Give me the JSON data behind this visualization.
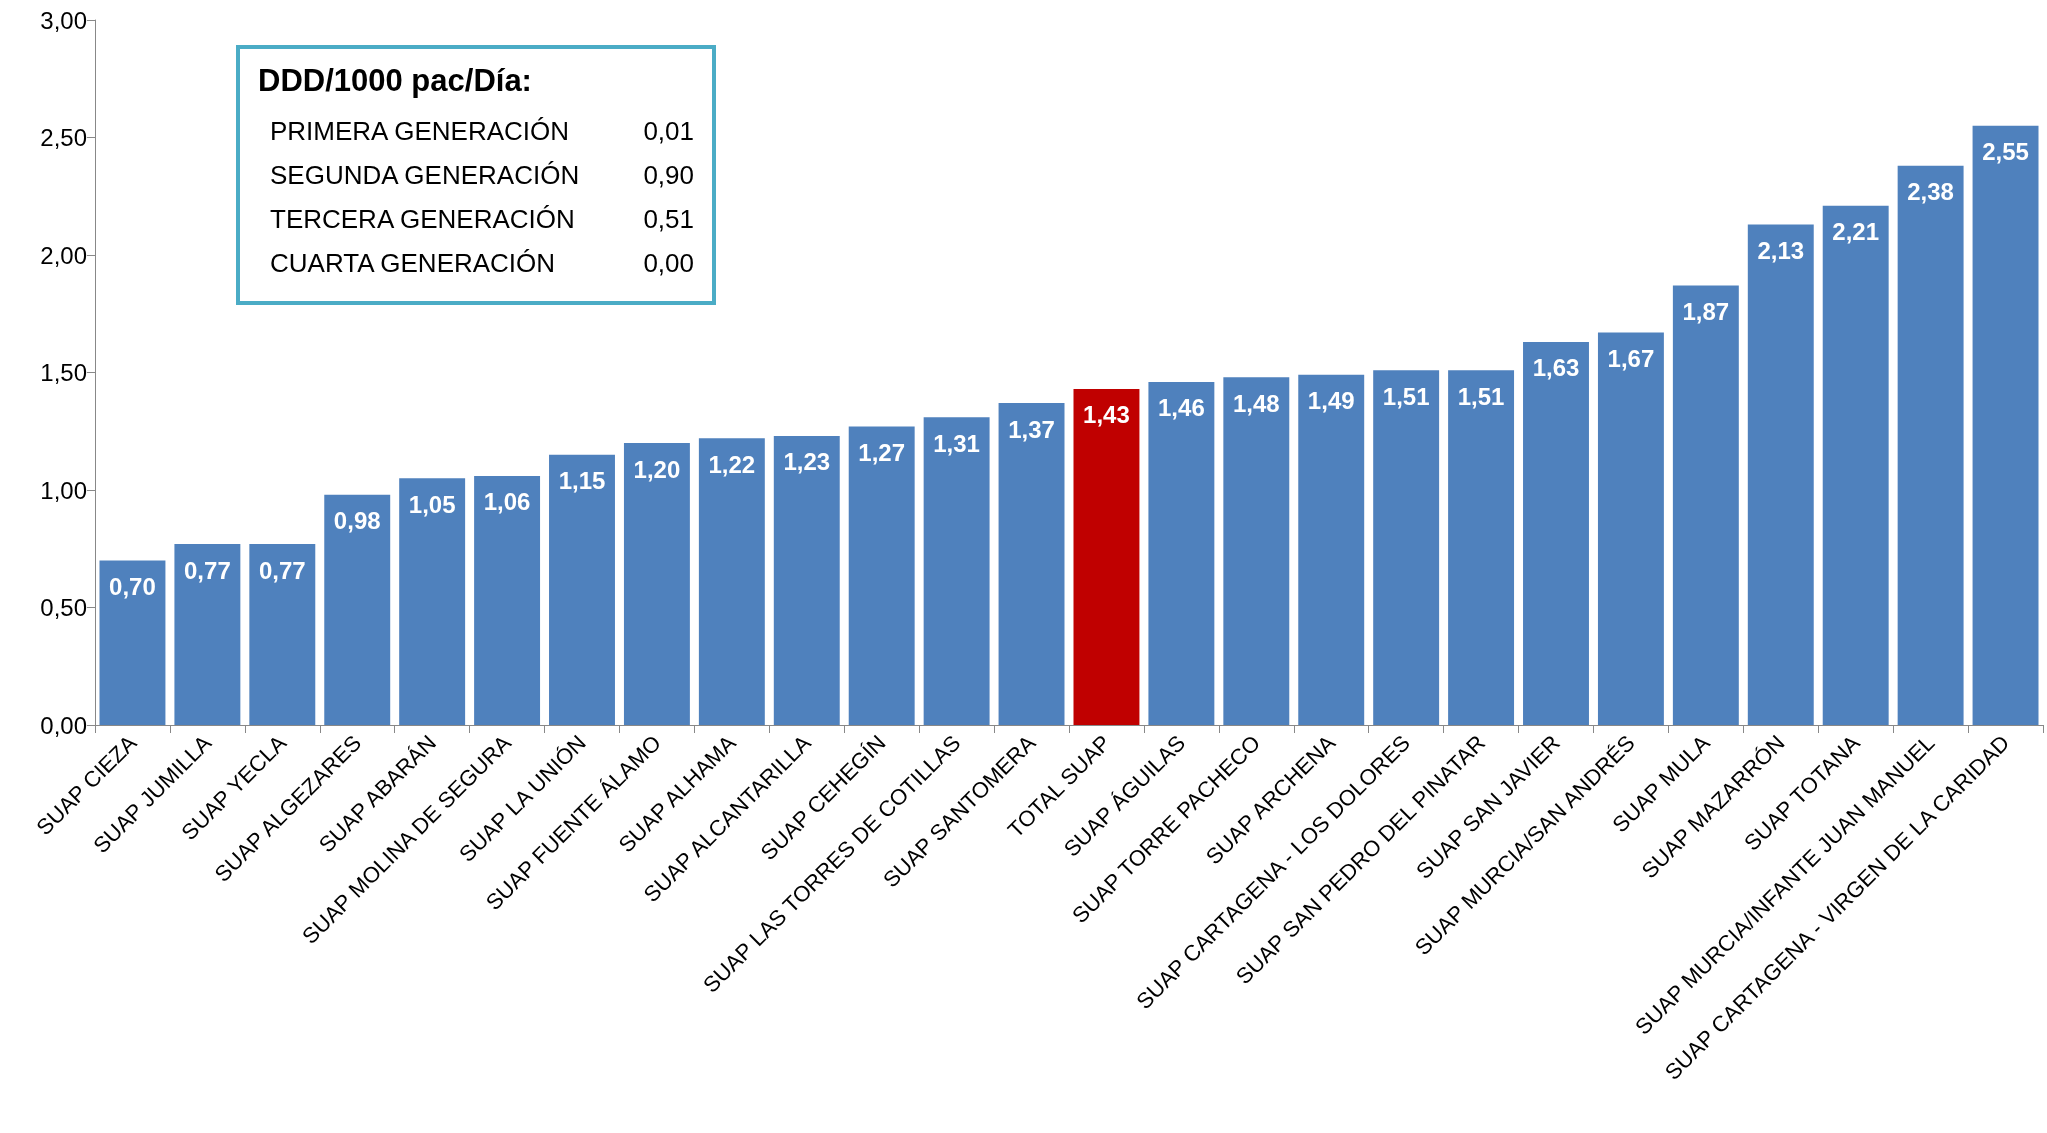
{
  "chart_data": {
    "type": "bar",
    "categories": [
      "SUAP CIEZA",
      "SUAP JUMILLA",
      "SUAP YECLA",
      "SUAP ALGEZARES",
      "SUAP ABARÁN",
      "SUAP MOLINA DE SEGURA",
      "SUAP LA UNIÓN",
      "SUAP FUENTE ÁLAMO",
      "SUAP ALHAMA",
      "SUAP ALCANTARILLA",
      "SUAP CEHEGÍN",
      "SUAP LAS TORRES DE COTILLAS",
      "SUAP SANTOMERA",
      "TOTAL SUAP",
      "SUAP ÁGUILAS",
      "SUAP TORRE PACHECO",
      "SUAP ARCHENA",
      "SUAP CARTAGENA - LOS DOLORES",
      "SUAP SAN PEDRO DEL PINATAR",
      "SUAP SAN JAVIER",
      "SUAP MURCIA/SAN ANDRÉS",
      "SUAP MULA",
      "SUAP MAZARRÓN",
      "SUAP TOTANA",
      "SUAP MURCIA/INFANTE JUAN MANUEL",
      "SUAP CARTAGENA - VIRGEN DE LA CARIDAD"
    ],
    "values": [
      0.7,
      0.77,
      0.77,
      0.98,
      1.05,
      1.06,
      1.15,
      1.2,
      1.22,
      1.23,
      1.27,
      1.31,
      1.37,
      1.43,
      1.46,
      1.48,
      1.49,
      1.51,
      1.51,
      1.63,
      1.67,
      1.87,
      2.13,
      2.21,
      2.38,
      2.55
    ],
    "value_labels": [
      "0,70",
      "0,77",
      "0,77",
      "0,98",
      "1,05",
      "1,06",
      "1,15",
      "1,20",
      "1,22",
      "1,23",
      "1,27",
      "1,31",
      "1,37",
      "1,43",
      "1,46",
      "1,48",
      "1,49",
      "1,51",
      "1,51",
      "1,63",
      "1,67",
      "1,87",
      "2,13",
      "2,21",
      "2,38",
      "2,55"
    ],
    "colors": [
      "#4f81bd",
      "#4f81bd",
      "#4f81bd",
      "#4f81bd",
      "#4f81bd",
      "#4f81bd",
      "#4f81bd",
      "#4f81bd",
      "#4f81bd",
      "#4f81bd",
      "#4f81bd",
      "#4f81bd",
      "#4f81bd",
      "#c00000",
      "#4f81bd",
      "#4f81bd",
      "#4f81bd",
      "#4f81bd",
      "#4f81bd",
      "#4f81bd",
      "#4f81bd",
      "#4f81bd",
      "#4f81bd",
      "#4f81bd",
      "#4f81bd",
      "#4f81bd"
    ],
    "ylim": [
      0,
      3
    ],
    "yticks": [
      {
        "value": 0,
        "label": "0,00"
      },
      {
        "value": 0.5,
        "label": "0,50"
      },
      {
        "value": 1,
        "label": "1,00"
      },
      {
        "value": 1.5,
        "label": "1,50"
      },
      {
        "value": 2,
        "label": "2,00"
      },
      {
        "value": 2.5,
        "label": "2,50"
      },
      {
        "value": 3,
        "label": "3,00"
      }
    ],
    "grid": false,
    "annotations": [
      "DDD/1000 pac/Día:",
      {
        "text": "PRIMERA GENERACIÓN\t0,01"
      },
      {
        "text": "SEGUNDA GENERACIÓN\t0,90"
      },
      {
        "text": "TERCERA GENERACIÓN\t0,51"
      },
      {
        "text": "CUARTA GENERACIÓN\t0,00"
      }
    ]
  }
}
